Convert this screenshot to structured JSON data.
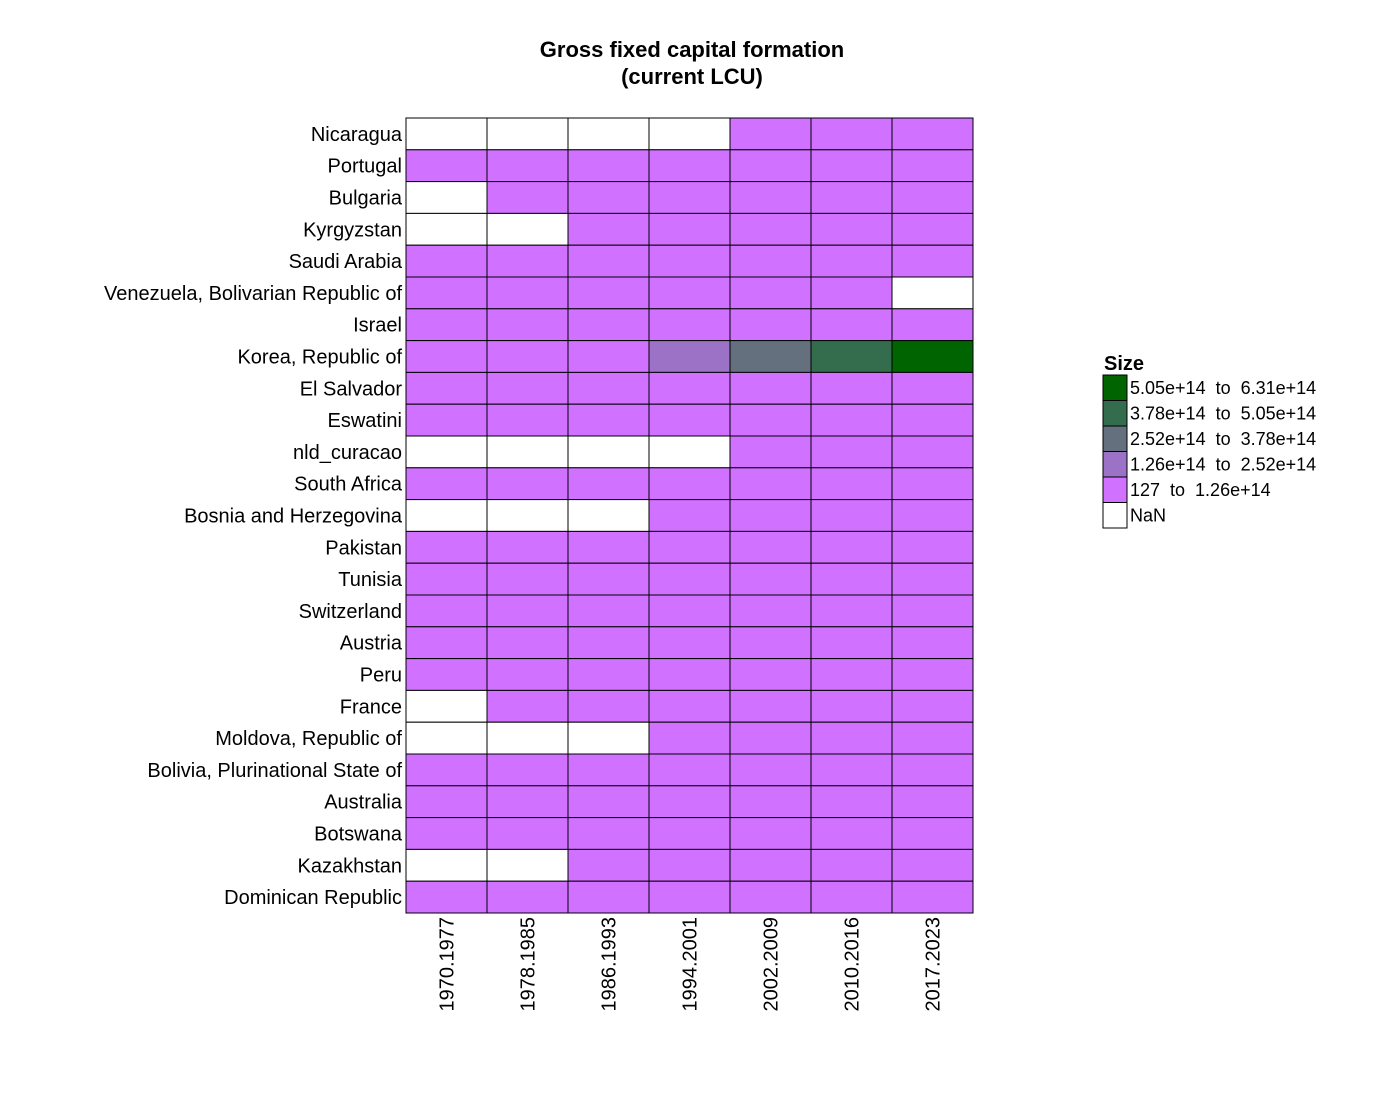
{
  "chart_data": {
    "type": "heatmap",
    "title": [
      "Gross fixed capital formation",
      "(current LCU)"
    ],
    "xlabel": "",
    "ylabel": "",
    "columns": [
      "1970.1977",
      "1978.1985",
      "1986.1993",
      "1994.2001",
      "2002.2009",
      "2010.2016",
      "2017.2023"
    ],
    "rows": [
      "Nicaragua",
      "Portugal",
      "Bulgaria",
      "Kyrgyzstan",
      "Saudi Arabia",
      "Venezuela, Bolivarian Republic of",
      "Israel",
      "Korea, Republic of",
      "El Salvador",
      "Eswatini",
      "nld_curacao",
      "South Africa",
      "Bosnia and Herzegovina",
      "Pakistan",
      "Tunisia",
      "Switzerland",
      "Austria",
      "Peru",
      "France",
      "Moldova, Republic of",
      "Bolivia, Plurinational State of",
      "Australia",
      "Botswana",
      "Kazakhstan",
      "Dominican Republic"
    ],
    "bins": [
      [
        null,
        null,
        null,
        null,
        0,
        0,
        0
      ],
      [
        0,
        0,
        0,
        0,
        0,
        0,
        0
      ],
      [
        null,
        0,
        0,
        0,
        0,
        0,
        0
      ],
      [
        null,
        null,
        0,
        0,
        0,
        0,
        0
      ],
      [
        0,
        0,
        0,
        0,
        0,
        0,
        0
      ],
      [
        0,
        0,
        0,
        0,
        0,
        0,
        null
      ],
      [
        0,
        0,
        0,
        0,
        0,
        0,
        0
      ],
      [
        0,
        0,
        0,
        1,
        2,
        3,
        4
      ],
      [
        0,
        0,
        0,
        0,
        0,
        0,
        0
      ],
      [
        0,
        0,
        0,
        0,
        0,
        0,
        0
      ],
      [
        null,
        null,
        null,
        null,
        0,
        0,
        0
      ],
      [
        0,
        0,
        0,
        0,
        0,
        0,
        0
      ],
      [
        null,
        null,
        null,
        0,
        0,
        0,
        0
      ],
      [
        0,
        0,
        0,
        0,
        0,
        0,
        0
      ],
      [
        0,
        0,
        0,
        0,
        0,
        0,
        0
      ],
      [
        0,
        0,
        0,
        0,
        0,
        0,
        0
      ],
      [
        0,
        0,
        0,
        0,
        0,
        0,
        0
      ],
      [
        0,
        0,
        0,
        0,
        0,
        0,
        0
      ],
      [
        null,
        0,
        0,
        0,
        0,
        0,
        0
      ],
      [
        null,
        null,
        null,
        0,
        0,
        0,
        0
      ],
      [
        0,
        0,
        0,
        0,
        0,
        0,
        0
      ],
      [
        0,
        0,
        0,
        0,
        0,
        0,
        0
      ],
      [
        0,
        0,
        0,
        0,
        0,
        0,
        0
      ],
      [
        null,
        null,
        0,
        0,
        0,
        0,
        0
      ],
      [
        0,
        0,
        0,
        0,
        0,
        0,
        0
      ]
    ],
    "legend": {
      "title": "Size",
      "placement": "right",
      "items": [
        {
          "label": "5.05e+14  to  6.31e+14",
          "color": "#006400",
          "bin": 4
        },
        {
          "label": "3.78e+14  to  5.05e+14",
          "color": "#336d4d",
          "bin": 3
        },
        {
          "label": "2.52e+14  to  3.78e+14",
          "color": "#65707f",
          "bin": 2
        },
        {
          "label": "1.26e+14  to  2.52e+14",
          "color": "#9c72c6",
          "bin": 1
        },
        {
          "label": "127  to  1.26e+14",
          "color": "#d171ff",
          "bin": 0
        },
        {
          "label": "NaN",
          "color": "#ffffff",
          "bin": null
        }
      ]
    }
  }
}
